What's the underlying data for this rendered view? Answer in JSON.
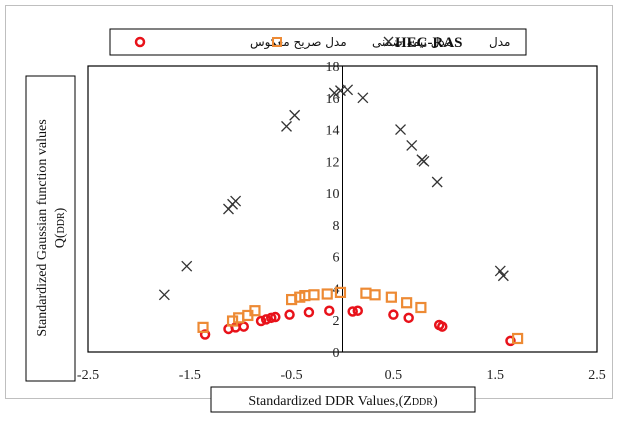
{
  "chart_data": {
    "type": "scatter",
    "xlabel": "Standardized DDR Values,(Z",
    "xlabel_sub": "DDR",
    "xlabel_end": ")",
    "ylabel_line1": "Standardized Gaussian function values",
    "ylabel_line2": "Q(",
    "ylabel_line2_sub": "DDR",
    "ylabel_line2_end": ")",
    "xlim": [
      -2.5,
      2.5
    ],
    "ylim": [
      0,
      18
    ],
    "xticks": [
      "-2.5",
      "-1.5",
      "-0.5",
      "0.5",
      "1.5",
      "2.5"
    ],
    "xtick_values": [
      -2.5,
      -1.5,
      -0.5,
      0.5,
      1.5,
      2.5
    ],
    "yticks": [
      "0",
      "2",
      "4",
      "6",
      "8",
      "10",
      "12",
      "14",
      "16",
      "18"
    ],
    "ytick_values": [
      0,
      2,
      4,
      6,
      8,
      10,
      12,
      14,
      16,
      18
    ],
    "grid": false,
    "legend_position": "top",
    "series": [
      {
        "name": "مدل صریح معکوس",
        "marker": "circle",
        "color": "#e8121a",
        "points": [
          [
            -1.35,
            1.1
          ],
          [
            -1.12,
            1.45
          ],
          [
            -1.05,
            1.55
          ],
          [
            -0.97,
            1.6
          ],
          [
            -0.8,
            1.95
          ],
          [
            -0.75,
            2.05
          ],
          [
            -0.7,
            2.15
          ],
          [
            -0.66,
            2.2
          ],
          [
            -0.52,
            2.35
          ],
          [
            -0.33,
            2.5
          ],
          [
            -0.13,
            2.6
          ],
          [
            0.1,
            2.55
          ],
          [
            0.15,
            2.6
          ],
          [
            0.5,
            2.35
          ],
          [
            0.65,
            2.15
          ],
          [
            0.95,
            1.7
          ],
          [
            0.98,
            1.6
          ],
          [
            1.65,
            0.7
          ]
        ]
      },
      {
        "name": "مدل نیمه ضمنی",
        "marker": "square",
        "color": "#ed8a34",
        "points": [
          [
            -1.37,
            1.55
          ],
          [
            -1.08,
            1.95
          ],
          [
            -1.02,
            2.15
          ],
          [
            -0.93,
            2.3
          ],
          [
            -0.86,
            2.6
          ],
          [
            -0.5,
            3.3
          ],
          [
            -0.42,
            3.45
          ],
          [
            -0.37,
            3.55
          ],
          [
            -0.28,
            3.6
          ],
          [
            -0.15,
            3.65
          ],
          [
            -0.02,
            3.75
          ],
          [
            0.23,
            3.7
          ],
          [
            0.32,
            3.6
          ],
          [
            0.48,
            3.45
          ],
          [
            0.63,
            3.1
          ],
          [
            0.77,
            2.8
          ],
          [
            1.72,
            0.85
          ]
        ]
      },
      {
        "name": "مدل HEC-RAS",
        "marker": "x",
        "color": "#333333",
        "points": [
          [
            -1.75,
            3.6
          ],
          [
            -1.53,
            5.4
          ],
          [
            -1.12,
            9.0
          ],
          [
            -1.08,
            9.3
          ],
          [
            -1.05,
            9.5
          ],
          [
            -0.55,
            14.2
          ],
          [
            -0.47,
            14.9
          ],
          [
            -0.08,
            16.3
          ],
          [
            -0.02,
            16.45
          ],
          [
            0.05,
            16.5
          ],
          [
            0.2,
            16.0
          ],
          [
            0.57,
            14.0
          ],
          [
            0.68,
            13.0
          ],
          [
            0.78,
            12.1
          ],
          [
            0.8,
            12.0
          ],
          [
            0.93,
            10.7
          ],
          [
            1.55,
            5.1
          ],
          [
            1.58,
            4.8
          ]
        ]
      }
    ]
  },
  "legend": {
    "item1_label": "مدل صریح معکوس",
    "item2_label": "مدل نیمه ضمنی",
    "item3_prefix": "مدل",
    "item3_bold": "HEC-RAS"
  },
  "colors": {
    "series_circle": "#e8121a",
    "series_square": "#ed8a34",
    "series_x": "#333333",
    "axis": "#000000"
  }
}
